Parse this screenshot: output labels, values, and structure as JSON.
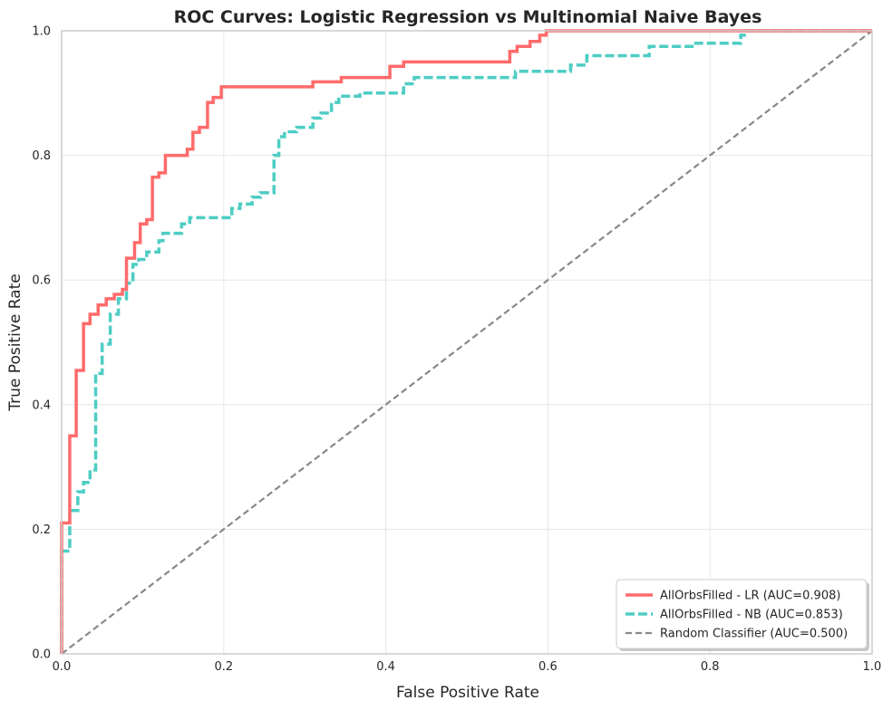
{
  "chart_data": {
    "type": "line",
    "title": "ROC Curves: Logistic Regression vs Multinomial Naive Bayes",
    "xlabel": "False Positive Rate",
    "ylabel": "True Positive Rate",
    "xlim": [
      0,
      1
    ],
    "ylim": [
      0,
      1
    ],
    "xticks": [
      "0.0",
      "0.2",
      "0.4",
      "0.6",
      "0.8",
      "1.0"
    ],
    "yticks": [
      "0.0",
      "0.2",
      "0.4",
      "0.6",
      "0.8",
      "1.0"
    ],
    "grid": true,
    "legend_position": "bottom-right",
    "series": [
      {
        "name": "AllOrbsFilled - LR (AUC=0.908)",
        "color": "#ff6b6b",
        "style": "solid",
        "points": [
          [
            0,
            0
          ],
          [
            0,
            0.21
          ],
          [
            0.01,
            0.21
          ],
          [
            0.01,
            0.35
          ],
          [
            0.018,
            0.35
          ],
          [
            0.018,
            0.455
          ],
          [
            0.027,
            0.455
          ],
          [
            0.027,
            0.53
          ],
          [
            0.035,
            0.53
          ],
          [
            0.035,
            0.545
          ],
          [
            0.045,
            0.545
          ],
          [
            0.045,
            0.56
          ],
          [
            0.055,
            0.56
          ],
          [
            0.055,
            0.57
          ],
          [
            0.065,
            0.57
          ],
          [
            0.065,
            0.577
          ],
          [
            0.075,
            0.577
          ],
          [
            0.075,
            0.585
          ],
          [
            0.08,
            0.585
          ],
          [
            0.08,
            0.635
          ],
          [
            0.09,
            0.635
          ],
          [
            0.09,
            0.66
          ],
          [
            0.097,
            0.66
          ],
          [
            0.097,
            0.69
          ],
          [
            0.105,
            0.69
          ],
          [
            0.105,
            0.697
          ],
          [
            0.112,
            0.697
          ],
          [
            0.112,
            0.765
          ],
          [
            0.12,
            0.765
          ],
          [
            0.12,
            0.772
          ],
          [
            0.128,
            0.772
          ],
          [
            0.128,
            0.8
          ],
          [
            0.155,
            0.8
          ],
          [
            0.155,
            0.81
          ],
          [
            0.162,
            0.81
          ],
          [
            0.162,
            0.837
          ],
          [
            0.17,
            0.837
          ],
          [
            0.17,
            0.845
          ],
          [
            0.18,
            0.845
          ],
          [
            0.18,
            0.885
          ],
          [
            0.187,
            0.885
          ],
          [
            0.187,
            0.893
          ],
          [
            0.197,
            0.893
          ],
          [
            0.197,
            0.91
          ],
          [
            0.31,
            0.91
          ],
          [
            0.31,
            0.918
          ],
          [
            0.345,
            0.918
          ],
          [
            0.345,
            0.925
          ],
          [
            0.405,
            0.925
          ],
          [
            0.405,
            0.943
          ],
          [
            0.422,
            0.943
          ],
          [
            0.422,
            0.95
          ],
          [
            0.553,
            0.95
          ],
          [
            0.553,
            0.967
          ],
          [
            0.562,
            0.967
          ],
          [
            0.562,
            0.975
          ],
          [
            0.578,
            0.975
          ],
          [
            0.578,
            0.983
          ],
          [
            0.59,
            0.983
          ],
          [
            0.59,
            0.993
          ],
          [
            0.598,
            0.993
          ],
          [
            0.598,
            1.0
          ],
          [
            1.0,
            1.0
          ]
        ]
      },
      {
        "name": "AllOrbsFilled - NB (AUC=0.853)",
        "color": "#4ecdc4",
        "style": "dashed",
        "points": [
          [
            0,
            0
          ],
          [
            0,
            0.165
          ],
          [
            0.01,
            0.165
          ],
          [
            0.01,
            0.23
          ],
          [
            0.02,
            0.23
          ],
          [
            0.02,
            0.26
          ],
          [
            0.027,
            0.26
          ],
          [
            0.027,
            0.275
          ],
          [
            0.035,
            0.275
          ],
          [
            0.035,
            0.295
          ],
          [
            0.042,
            0.295
          ],
          [
            0.042,
            0.45
          ],
          [
            0.05,
            0.45
          ],
          [
            0.05,
            0.497
          ],
          [
            0.06,
            0.497
          ],
          [
            0.06,
            0.545
          ],
          [
            0.07,
            0.545
          ],
          [
            0.07,
            0.57
          ],
          [
            0.08,
            0.57
          ],
          [
            0.08,
            0.595
          ],
          [
            0.088,
            0.595
          ],
          [
            0.088,
            0.625
          ],
          [
            0.095,
            0.625
          ],
          [
            0.095,
            0.633
          ],
          [
            0.105,
            0.633
          ],
          [
            0.105,
            0.645
          ],
          [
            0.12,
            0.645
          ],
          [
            0.12,
            0.663
          ],
          [
            0.125,
            0.663
          ],
          [
            0.125,
            0.675
          ],
          [
            0.148,
            0.675
          ],
          [
            0.148,
            0.69
          ],
          [
            0.158,
            0.69
          ],
          [
            0.158,
            0.7
          ],
          [
            0.21,
            0.7
          ],
          [
            0.21,
            0.715
          ],
          [
            0.22,
            0.715
          ],
          [
            0.22,
            0.722
          ],
          [
            0.235,
            0.722
          ],
          [
            0.235,
            0.733
          ],
          [
            0.245,
            0.733
          ],
          [
            0.245,
            0.74
          ],
          [
            0.262,
            0.74
          ],
          [
            0.262,
            0.8
          ],
          [
            0.268,
            0.8
          ],
          [
            0.268,
            0.83
          ],
          [
            0.275,
            0.83
          ],
          [
            0.275,
            0.838
          ],
          [
            0.29,
            0.838
          ],
          [
            0.29,
            0.845
          ],
          [
            0.31,
            0.845
          ],
          [
            0.31,
            0.86
          ],
          [
            0.32,
            0.86
          ],
          [
            0.32,
            0.868
          ],
          [
            0.333,
            0.868
          ],
          [
            0.333,
            0.885
          ],
          [
            0.342,
            0.885
          ],
          [
            0.342,
            0.895
          ],
          [
            0.368,
            0.895
          ],
          [
            0.368,
            0.9
          ],
          [
            0.422,
            0.9
          ],
          [
            0.422,
            0.915
          ],
          [
            0.435,
            0.915
          ],
          [
            0.435,
            0.925
          ],
          [
            0.56,
            0.925
          ],
          [
            0.56,
            0.935
          ],
          [
            0.628,
            0.935
          ],
          [
            0.628,
            0.945
          ],
          [
            0.648,
            0.945
          ],
          [
            0.648,
            0.96
          ],
          [
            0.725,
            0.96
          ],
          [
            0.725,
            0.975
          ],
          [
            0.78,
            0.975
          ],
          [
            0.78,
            0.98
          ],
          [
            0.838,
            0.98
          ],
          [
            0.838,
            0.993
          ],
          [
            0.845,
            0.993
          ],
          [
            0.845,
            1.0
          ],
          [
            1.0,
            1.0
          ]
        ]
      },
      {
        "name": "Random Classifier (AUC=0.500)",
        "color": "#888888",
        "style": "dashed",
        "points": [
          [
            0,
            0
          ],
          [
            1,
            1
          ]
        ]
      }
    ]
  }
}
